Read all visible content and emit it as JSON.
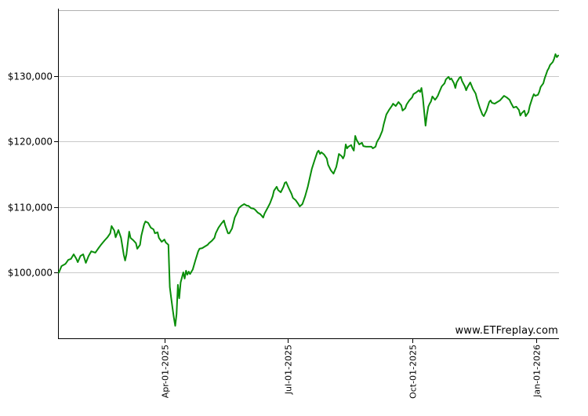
{
  "watermark": "www.ETFreplay.com",
  "colors": {
    "line": "#0a8e0a",
    "grid": "#c9c9c9",
    "top_border": "#b0b0b0",
    "axis": "#000000",
    "label": "#000000",
    "background": "#ffffff"
  },
  "chart_data": {
    "type": "line",
    "title": "",
    "legend": [],
    "grid": "horizontal-only",
    "ylabel": "",
    "xlabel": "",
    "y_range": [
      90000,
      140000
    ],
    "x_range_days": [
      0,
      369
    ],
    "y_ticks": [
      {
        "label": "$100,000",
        "value": 100000
      },
      {
        "label": "$110,000",
        "value": 110000
      },
      {
        "label": "$120,000",
        "value": 120000
      },
      {
        "label": "$130,000",
        "value": 130000
      }
    ],
    "x_ticks": [
      {
        "label": "Apr-01-2025",
        "day": 78
      },
      {
        "label": "Jul-01-2025",
        "day": 169
      },
      {
        "label": "Oct-01-2025",
        "day": 261
      },
      {
        "label": "Jan-01-2026",
        "day": 353
      }
    ],
    "series_name": "growth-of-100k",
    "start_value": 100000,
    "end_value": 133100,
    "min_value": 91900,
    "max_value": 133300,
    "points": [
      [
        0,
        100000
      ],
      [
        2,
        101000
      ],
      [
        5,
        101350
      ],
      [
        7,
        101950
      ],
      [
        9,
        102100
      ],
      [
        11,
        102800
      ],
      [
        13,
        102100
      ],
      [
        14,
        101600
      ],
      [
        16,
        102550
      ],
      [
        18,
        102800
      ],
      [
        20,
        101500
      ],
      [
        22,
        102550
      ],
      [
        24,
        103250
      ],
      [
        27,
        103050
      ],
      [
        29,
        103650
      ],
      [
        31,
        104200
      ],
      [
        34,
        104950
      ],
      [
        36,
        105400
      ],
      [
        38,
        106000
      ],
      [
        39,
        107100
      ],
      [
        41,
        106400
      ],
      [
        42,
        105400
      ],
      [
        44,
        106500
      ],
      [
        45,
        105900
      ],
      [
        46,
        105300
      ],
      [
        48,
        102700
      ],
      [
        49,
        101850
      ],
      [
        50,
        102800
      ],
      [
        52,
        106250
      ],
      [
        53,
        105300
      ],
      [
        55,
        104950
      ],
      [
        57,
        104500
      ],
      [
        58,
        103650
      ],
      [
        60,
        104250
      ],
      [
        61,
        105650
      ],
      [
        63,
        107350
      ],
      [
        64,
        107800
      ],
      [
        66,
        107600
      ],
      [
        68,
        106850
      ],
      [
        70,
        106600
      ],
      [
        71,
        106000
      ],
      [
        73,
        106150
      ],
      [
        74,
        105300
      ],
      [
        76,
        104700
      ],
      [
        78,
        105050
      ],
      [
        79,
        104600
      ],
      [
        81,
        104250
      ],
      [
        82,
        97800
      ],
      [
        83,
        96200
      ],
      [
        84,
        94650
      ],
      [
        85,
        93200
      ],
      [
        86,
        91900
      ],
      [
        87,
        93700
      ],
      [
        88,
        98150
      ],
      [
        89,
        96100
      ],
      [
        90,
        98500
      ],
      [
        92,
        100050
      ],
      [
        93,
        99100
      ],
      [
        94,
        100300
      ],
      [
        95,
        99700
      ],
      [
        96,
        100150
      ],
      [
        97,
        99800
      ],
      [
        99,
        100500
      ],
      [
        101,
        101950
      ],
      [
        103,
        103250
      ],
      [
        104,
        103650
      ],
      [
        106,
        103750
      ],
      [
        108,
        104000
      ],
      [
        110,
        104250
      ],
      [
        111,
        104500
      ],
      [
        113,
        104850
      ],
      [
        115,
        105300
      ],
      [
        116,
        106000
      ],
      [
        118,
        106850
      ],
      [
        120,
        107450
      ],
      [
        122,
        107950
      ],
      [
        123,
        107200
      ],
      [
        125,
        106000
      ],
      [
        126,
        106000
      ],
      [
        128,
        106750
      ],
      [
        130,
        108400
      ],
      [
        132,
        109250
      ],
      [
        133,
        109850
      ],
      [
        135,
        110200
      ],
      [
        137,
        110450
      ],
      [
        139,
        110200
      ],
      [
        140,
        110200
      ],
      [
        142,
        109850
      ],
      [
        144,
        109750
      ],
      [
        145,
        109600
      ],
      [
        147,
        109150
      ],
      [
        149,
        108900
      ],
      [
        151,
        108400
      ],
      [
        152,
        109000
      ],
      [
        154,
        109750
      ],
      [
        156,
        110550
      ],
      [
        158,
        111650
      ],
      [
        159,
        112500
      ],
      [
        161,
        113100
      ],
      [
        162,
        112600
      ],
      [
        164,
        112250
      ],
      [
        166,
        113100
      ],
      [
        167,
        113700
      ],
      [
        168,
        113800
      ],
      [
        170,
        112850
      ],
      [
        172,
        112000
      ],
      [
        173,
        111400
      ],
      [
        175,
        111050
      ],
      [
        177,
        110450
      ],
      [
        178,
        110100
      ],
      [
        180,
        110450
      ],
      [
        182,
        111650
      ],
      [
        184,
        113100
      ],
      [
        185,
        114050
      ],
      [
        187,
        115850
      ],
      [
        189,
        117150
      ],
      [
        191,
        118350
      ],
      [
        192,
        118600
      ],
      [
        193,
        118100
      ],
      [
        194,
        118350
      ],
      [
        196,
        118000
      ],
      [
        198,
        117400
      ],
      [
        199,
        116450
      ],
      [
        201,
        115600
      ],
      [
        203,
        115100
      ],
      [
        205,
        116100
      ],
      [
        206,
        117050
      ],
      [
        207,
        118100
      ],
      [
        209,
        117750
      ],
      [
        210,
        117400
      ],
      [
        211,
        117850
      ],
      [
        212,
        119550
      ],
      [
        213,
        118950
      ],
      [
        214,
        119200
      ],
      [
        216,
        119450
      ],
      [
        217,
        118950
      ],
      [
        218,
        118600
      ],
      [
        219,
        120850
      ],
      [
        220,
        120250
      ],
      [
        222,
        119550
      ],
      [
        224,
        119800
      ],
      [
        225,
        119300
      ],
      [
        227,
        119200
      ],
      [
        229,
        119200
      ],
      [
        231,
        119200
      ],
      [
        232,
        118950
      ],
      [
        234,
        119200
      ],
      [
        235,
        119900
      ],
      [
        237,
        120600
      ],
      [
        239,
        121600
      ],
      [
        240,
        122550
      ],
      [
        242,
        124100
      ],
      [
        244,
        124800
      ],
      [
        246,
        125400
      ],
      [
        247,
        125750
      ],
      [
        249,
        125400
      ],
      [
        251,
        126000
      ],
      [
        253,
        125500
      ],
      [
        254,
        124700
      ],
      [
        256,
        125050
      ],
      [
        257,
        125650
      ],
      [
        259,
        126250
      ],
      [
        261,
        126700
      ],
      [
        262,
        127200
      ],
      [
        264,
        127450
      ],
      [
        266,
        127800
      ],
      [
        267,
        127550
      ],
      [
        268,
        128150
      ],
      [
        269,
        126600
      ],
      [
        271,
        122400
      ],
      [
        272,
        124100
      ],
      [
        273,
        125300
      ],
      [
        274,
        125750
      ],
      [
        275,
        126100
      ],
      [
        276,
        126850
      ],
      [
        278,
        126350
      ],
      [
        279,
        126600
      ],
      [
        280,
        126950
      ],
      [
        281,
        127450
      ],
      [
        283,
        128400
      ],
      [
        285,
        128850
      ],
      [
        286,
        129450
      ],
      [
        288,
        129850
      ],
      [
        289,
        129450
      ],
      [
        290,
        129600
      ],
      [
        292,
        128850
      ],
      [
        293,
        128150
      ],
      [
        294,
        129000
      ],
      [
        296,
        129700
      ],
      [
        297,
        129850
      ],
      [
        298,
        129200
      ],
      [
        300,
        128400
      ],
      [
        301,
        127800
      ],
      [
        302,
        128300
      ],
      [
        304,
        129000
      ],
      [
        306,
        128000
      ],
      [
        308,
        127300
      ],
      [
        309,
        126500
      ],
      [
        311,
        125150
      ],
      [
        313,
        124100
      ],
      [
        314,
        123850
      ],
      [
        316,
        124700
      ],
      [
        318,
        126000
      ],
      [
        319,
        126250
      ],
      [
        320,
        125900
      ],
      [
        322,
        125750
      ],
      [
        324,
        126000
      ],
      [
        326,
        126250
      ],
      [
        327,
        126500
      ],
      [
        329,
        126950
      ],
      [
        331,
        126700
      ],
      [
        333,
        126350
      ],
      [
        334,
        125900
      ],
      [
        336,
        125150
      ],
      [
        338,
        125300
      ],
      [
        340,
        124800
      ],
      [
        341,
        123950
      ],
      [
        342,
        124300
      ],
      [
        344,
        124700
      ],
      [
        345,
        123850
      ],
      [
        347,
        124450
      ],
      [
        348,
        125400
      ],
      [
        350,
        126700
      ],
      [
        351,
        127200
      ],
      [
        352,
        126950
      ],
      [
        354,
        127100
      ],
      [
        355,
        127550
      ],
      [
        356,
        128300
      ],
      [
        358,
        128850
      ],
      [
        359,
        129600
      ],
      [
        360,
        130200
      ],
      [
        361,
        130800
      ],
      [
        362,
        131150
      ],
      [
        363,
        131650
      ],
      [
        365,
        132100
      ],
      [
        366,
        132600
      ],
      [
        367,
        133300
      ],
      [
        368,
        132850
      ],
      [
        369,
        133100
      ]
    ]
  }
}
